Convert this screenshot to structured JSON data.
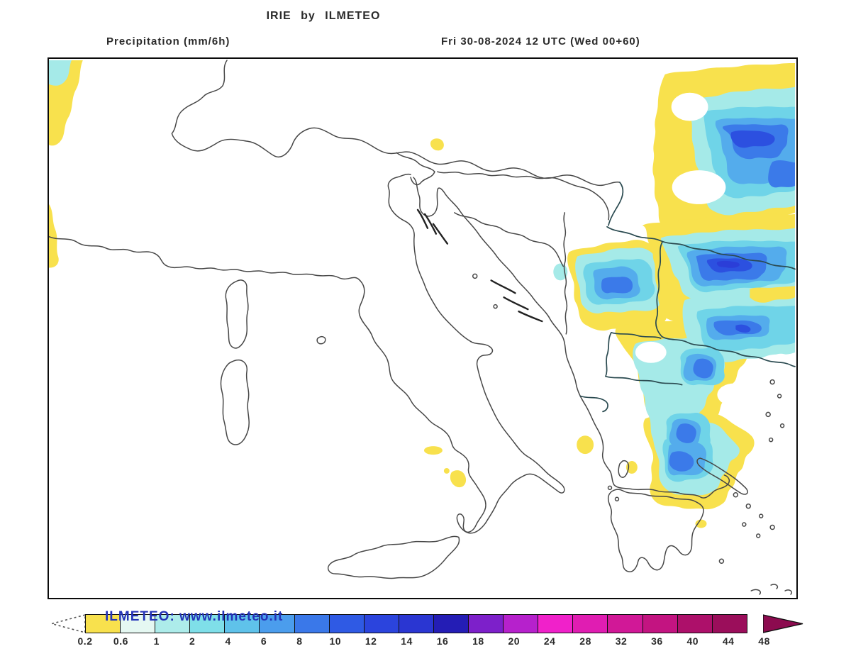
{
  "title": "IRIE by ILMETEO",
  "labels": {
    "left": "Precipitation (mm/6h)",
    "right": "Fri 30-08-2024 12 UTC (Wed 00+60)"
  },
  "watermark": {
    "text": "ILMETEO: www.ilmeteo.it",
    "color": "#2433B8"
  },
  "colorbar": {
    "unit": "mm/6h",
    "tick_labels": [
      "0.2",
      "0.6",
      "1",
      "2",
      "4",
      "6",
      "8",
      "10",
      "12",
      "14",
      "16",
      "18",
      "20",
      "24",
      "28",
      "32",
      "36",
      "40",
      "44",
      "48"
    ],
    "cells": [
      {
        "range": "0.2-0.6",
        "color": "#F8E14D"
      },
      {
        "range": "0.6-1",
        "color": "#E5F8F2"
      },
      {
        "range": "1-2",
        "color": "#ADECEA"
      },
      {
        "range": "2-4",
        "color": "#7FDFE9"
      },
      {
        "range": "4-6",
        "color": "#5FC2EA"
      },
      {
        "range": "6-8",
        "color": "#4B9DED"
      },
      {
        "range": "8-10",
        "color": "#3A78E9"
      },
      {
        "range": "10-12",
        "color": "#2F5AE4"
      },
      {
        "range": "12-14",
        "color": "#2B44DD"
      },
      {
        "range": "14-16",
        "color": "#2A36D2"
      },
      {
        "range": "16-18",
        "color": "#241DB5"
      },
      {
        "range": "18-20",
        "color": "#7D20CA"
      },
      {
        "range": "20-24",
        "color": "#B621CC"
      },
      {
        "range": "24-28",
        "color": "#F021CA"
      },
      {
        "range": "28-32",
        "color": "#E01DB2"
      },
      {
        "range": "32-36",
        "color": "#D11897"
      },
      {
        "range": "36-40",
        "color": "#C31481"
      },
      {
        "range": "40-44",
        "color": "#AD106A"
      },
      {
        "range": "44-48",
        "color": "#9B0E5B"
      }
    ],
    "underflow_color": "#FFFFFF",
    "overflow_color": "#8C0B4F"
  },
  "map": {
    "region": "Italy, Adriatic Sea and Balkans",
    "precip_palette": {
      "yellow_0.2": "#F8E14D",
      "light_cyan_1": "#A5EAE8",
      "cyan_2": "#6FD4E8",
      "sky_4": "#54ACEC",
      "blue_6": "#3B7AE9",
      "royal_8": "#2C50E0",
      "deep_10": "#2B3ED8"
    },
    "coastline_color": "#474747",
    "border_color": "#2A4A50"
  }
}
